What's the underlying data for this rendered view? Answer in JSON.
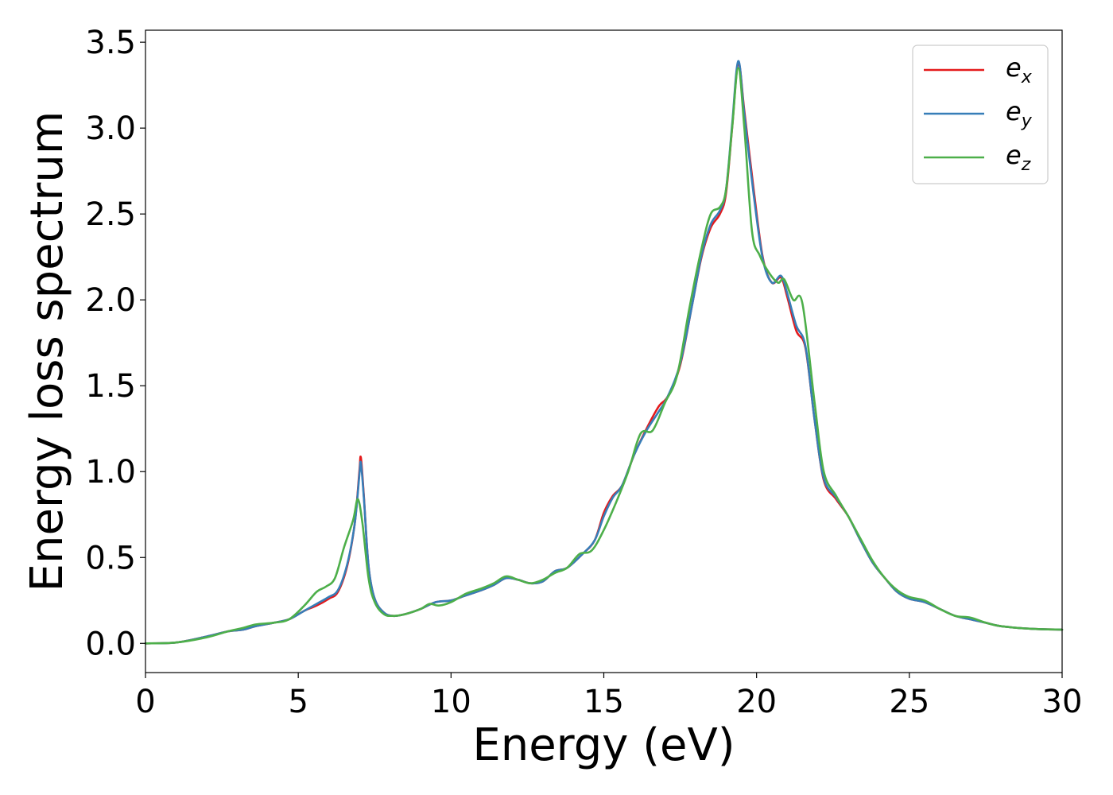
{
  "chart_data": {
    "type": "line",
    "title": "",
    "xlabel": "Energy (eV)",
    "ylabel": "Energy loss spectrum",
    "xlim": [
      0,
      30
    ],
    "ylim": [
      -0.17,
      3.57
    ],
    "xticks": [
      0,
      5,
      10,
      15,
      20,
      25,
      30
    ],
    "xtick_labels": [
      "0",
      "5",
      "10",
      "15",
      "20",
      "25",
      "30"
    ],
    "yticks": [
      0.0,
      0.5,
      1.0,
      1.5,
      2.0,
      2.5,
      3.0,
      3.5
    ],
    "ytick_labels": [
      "0.0",
      "0.5",
      "1.0",
      "1.5",
      "2.0",
      "2.5",
      "3.0",
      "3.5"
    ],
    "grid": false,
    "legend": "top-right",
    "series": [
      {
        "name": "e_x",
        "legend_base": "e",
        "legend_sub": "x",
        "color": "#e41a1c",
        "points": [
          [
            0,
            0
          ],
          [
            1,
            0.005
          ],
          [
            2,
            0.04
          ],
          [
            2.7,
            0.07
          ],
          [
            3.2,
            0.08
          ],
          [
            3.6,
            0.1
          ],
          [
            4.2,
            0.12
          ],
          [
            4.7,
            0.14
          ],
          [
            5.2,
            0.19
          ],
          [
            5.6,
            0.22
          ],
          [
            6,
            0.26
          ],
          [
            6.3,
            0.3
          ],
          [
            6.6,
            0.45
          ],
          [
            6.85,
            0.7
          ],
          [
            7.0,
            1.0
          ],
          [
            7.05,
            1.08
          ],
          [
            7.15,
            0.85
          ],
          [
            7.3,
            0.45
          ],
          [
            7.5,
            0.26
          ],
          [
            7.8,
            0.18
          ],
          [
            8.1,
            0.16
          ],
          [
            8.5,
            0.17
          ],
          [
            9,
            0.2
          ],
          [
            9.5,
            0.24
          ],
          [
            10,
            0.25
          ],
          [
            10.5,
            0.28
          ],
          [
            11,
            0.31
          ],
          [
            11.4,
            0.34
          ],
          [
            11.8,
            0.38
          ],
          [
            12.2,
            0.37
          ],
          [
            12.6,
            0.35
          ],
          [
            13,
            0.36
          ],
          [
            13.4,
            0.42
          ],
          [
            13.8,
            0.44
          ],
          [
            14.3,
            0.52
          ],
          [
            14.7,
            0.6
          ],
          [
            15,
            0.76
          ],
          [
            15.3,
            0.86
          ],
          [
            15.6,
            0.92
          ],
          [
            16,
            1.1
          ],
          [
            16.4,
            1.25
          ],
          [
            16.8,
            1.38
          ],
          [
            17.1,
            1.44
          ],
          [
            17.5,
            1.62
          ],
          [
            17.9,
            1.98
          ],
          [
            18.2,
            2.25
          ],
          [
            18.5,
            2.42
          ],
          [
            18.8,
            2.5
          ],
          [
            19.0,
            2.62
          ],
          [
            19.2,
            3.0
          ],
          [
            19.4,
            3.38
          ],
          [
            19.6,
            3.1
          ],
          [
            19.9,
            2.65
          ],
          [
            20.2,
            2.25
          ],
          [
            20.5,
            2.1
          ],
          [
            20.8,
            2.13
          ],
          [
            21.0,
            2.02
          ],
          [
            21.3,
            1.82
          ],
          [
            21.6,
            1.72
          ],
          [
            21.9,
            1.3
          ],
          [
            22.2,
            0.95
          ],
          [
            22.6,
            0.84
          ],
          [
            23,
            0.74
          ],
          [
            23.4,
            0.6
          ],
          [
            23.8,
            0.47
          ],
          [
            24.2,
            0.38
          ],
          [
            24.6,
            0.3
          ],
          [
            25,
            0.26
          ],
          [
            25.5,
            0.24
          ],
          [
            26,
            0.2
          ],
          [
            26.5,
            0.16
          ],
          [
            27,
            0.14
          ],
          [
            27.5,
            0.12
          ],
          [
            28,
            0.1
          ],
          [
            29,
            0.085
          ],
          [
            30,
            0.08
          ]
        ]
      },
      {
        "name": "e_y",
        "legend_base": "e",
        "legend_sub": "y",
        "color": "#377eb8",
        "points": [
          [
            0,
            0
          ],
          [
            1,
            0.005
          ],
          [
            2,
            0.04
          ],
          [
            2.7,
            0.07
          ],
          [
            3.2,
            0.08
          ],
          [
            3.6,
            0.1
          ],
          [
            4.2,
            0.12
          ],
          [
            4.7,
            0.14
          ],
          [
            5.2,
            0.19
          ],
          [
            5.6,
            0.23
          ],
          [
            6,
            0.27
          ],
          [
            6.3,
            0.31
          ],
          [
            6.6,
            0.46
          ],
          [
            6.85,
            0.7
          ],
          [
            7.0,
            0.98
          ],
          [
            7.05,
            1.05
          ],
          [
            7.15,
            0.84
          ],
          [
            7.3,
            0.45
          ],
          [
            7.5,
            0.26
          ],
          [
            7.8,
            0.18
          ],
          [
            8.1,
            0.16
          ],
          [
            8.5,
            0.17
          ],
          [
            9,
            0.2
          ],
          [
            9.5,
            0.24
          ],
          [
            10,
            0.25
          ],
          [
            10.5,
            0.28
          ],
          [
            11,
            0.31
          ],
          [
            11.4,
            0.34
          ],
          [
            11.8,
            0.38
          ],
          [
            12.2,
            0.37
          ],
          [
            12.6,
            0.35
          ],
          [
            13,
            0.36
          ],
          [
            13.4,
            0.42
          ],
          [
            13.8,
            0.44
          ],
          [
            14.3,
            0.52
          ],
          [
            14.7,
            0.6
          ],
          [
            15,
            0.74
          ],
          [
            15.3,
            0.85
          ],
          [
            15.6,
            0.92
          ],
          [
            16,
            1.1
          ],
          [
            16.4,
            1.24
          ],
          [
            16.8,
            1.35
          ],
          [
            17.1,
            1.44
          ],
          [
            17.5,
            1.63
          ],
          [
            17.9,
            1.98
          ],
          [
            18.2,
            2.26
          ],
          [
            18.5,
            2.44
          ],
          [
            18.8,
            2.52
          ],
          [
            19.0,
            2.64
          ],
          [
            19.2,
            3.02
          ],
          [
            19.4,
            3.39
          ],
          [
            19.6,
            3.08
          ],
          [
            19.9,
            2.62
          ],
          [
            20.2,
            2.24
          ],
          [
            20.5,
            2.1
          ],
          [
            20.8,
            2.14
          ],
          [
            21.0,
            2.04
          ],
          [
            21.3,
            1.85
          ],
          [
            21.6,
            1.73
          ],
          [
            21.9,
            1.3
          ],
          [
            22.2,
            0.96
          ],
          [
            22.6,
            0.85
          ],
          [
            23,
            0.74
          ],
          [
            23.4,
            0.6
          ],
          [
            23.8,
            0.47
          ],
          [
            24.2,
            0.38
          ],
          [
            24.6,
            0.3
          ],
          [
            25,
            0.26
          ],
          [
            25.5,
            0.24
          ],
          [
            26,
            0.2
          ],
          [
            26.5,
            0.16
          ],
          [
            27,
            0.14
          ],
          [
            27.5,
            0.12
          ],
          [
            28,
            0.1
          ],
          [
            29,
            0.085
          ],
          [
            30,
            0.08
          ]
        ]
      },
      {
        "name": "e_z",
        "legend_base": "e",
        "legend_sub": "z",
        "color": "#4daf4a",
        "points": [
          [
            0,
            0
          ],
          [
            1,
            0.005
          ],
          [
            2,
            0.035
          ],
          [
            2.7,
            0.07
          ],
          [
            3.2,
            0.09
          ],
          [
            3.6,
            0.11
          ],
          [
            4.2,
            0.12
          ],
          [
            4.7,
            0.14
          ],
          [
            5.2,
            0.22
          ],
          [
            5.6,
            0.3
          ],
          [
            5.9,
            0.33
          ],
          [
            6.2,
            0.38
          ],
          [
            6.5,
            0.56
          ],
          [
            6.8,
            0.72
          ],
          [
            6.95,
            0.84
          ],
          [
            7.1,
            0.7
          ],
          [
            7.3,
            0.38
          ],
          [
            7.5,
            0.24
          ],
          [
            7.8,
            0.17
          ],
          [
            8.1,
            0.16
          ],
          [
            8.5,
            0.17
          ],
          [
            9,
            0.2
          ],
          [
            9.3,
            0.23
          ],
          [
            9.6,
            0.22
          ],
          [
            10,
            0.24
          ],
          [
            10.5,
            0.29
          ],
          [
            11,
            0.32
          ],
          [
            11.4,
            0.35
          ],
          [
            11.8,
            0.39
          ],
          [
            12.2,
            0.37
          ],
          [
            12.6,
            0.35
          ],
          [
            13,
            0.37
          ],
          [
            13.4,
            0.41
          ],
          [
            13.8,
            0.44
          ],
          [
            14.2,
            0.52
          ],
          [
            14.6,
            0.54
          ],
          [
            15,
            0.66
          ],
          [
            15.4,
            0.82
          ],
          [
            15.8,
            1.0
          ],
          [
            16.2,
            1.22
          ],
          [
            16.6,
            1.24
          ],
          [
            17,
            1.4
          ],
          [
            17.4,
            1.56
          ],
          [
            17.8,
            1.95
          ],
          [
            18.2,
            2.3
          ],
          [
            18.5,
            2.5
          ],
          [
            18.8,
            2.54
          ],
          [
            19.0,
            2.64
          ],
          [
            19.2,
            3.0
          ],
          [
            19.4,
            3.35
          ],
          [
            19.6,
            3.0
          ],
          [
            19.85,
            2.4
          ],
          [
            20.1,
            2.26
          ],
          [
            20.4,
            2.16
          ],
          [
            20.7,
            2.1
          ],
          [
            20.9,
            2.12
          ],
          [
            21.2,
            2.0
          ],
          [
            21.5,
            1.98
          ],
          [
            21.9,
            1.4
          ],
          [
            22.2,
            1.0
          ],
          [
            22.6,
            0.86
          ],
          [
            23,
            0.74
          ],
          [
            23.4,
            0.61
          ],
          [
            23.8,
            0.48
          ],
          [
            24.2,
            0.38
          ],
          [
            24.6,
            0.31
          ],
          [
            25,
            0.27
          ],
          [
            25.5,
            0.25
          ],
          [
            26,
            0.2
          ],
          [
            26.5,
            0.16
          ],
          [
            27,
            0.15
          ],
          [
            27.5,
            0.12
          ],
          [
            28,
            0.1
          ],
          [
            29,
            0.085
          ],
          [
            30,
            0.08
          ]
        ]
      }
    ]
  }
}
